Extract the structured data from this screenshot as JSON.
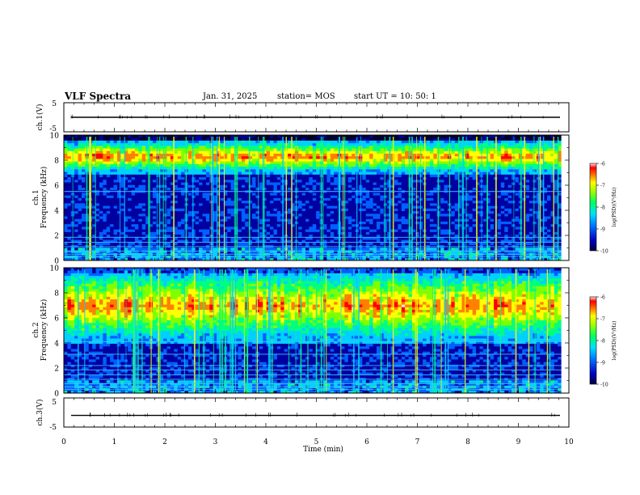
{
  "header": {
    "title": "VLF Spectra",
    "date": "Jan. 31, 2025",
    "station": "station= MOS",
    "start": "start  UT =   10: 50: 1"
  },
  "colors": {
    "spectrogram_scale": [
      "#000030",
      "#0000a0",
      "#0060ff",
      "#00d0ff",
      "#00ff80",
      "#80ff00",
      "#ffff00",
      "#ff8000",
      "#ff0000",
      "#ffe0e0"
    ]
  },
  "chart_data": [
    {
      "type": "line",
      "name": "ch1-waveform",
      "ylabel": "ch.1(V)",
      "ylim": [
        -5,
        5
      ],
      "yticks": [
        "5",
        "-5"
      ],
      "x": [
        0,
        10
      ],
      "y": [
        0,
        0
      ]
    },
    {
      "type": "heatmap",
      "name": "ch1-spectrogram",
      "ylabel": "ch.1\nFrequency (kHz)",
      "ylabel_line1": "ch.1",
      "ylabel_line2": "Frequency (kHz)",
      "ylim": [
        0,
        10
      ],
      "yticks": [
        "0",
        "2",
        "4",
        "6",
        "8",
        "10"
      ],
      "xlim": [
        0,
        9.85
      ],
      "colorbar": {
        "label": "log(PSD)(V²/Hz)",
        "range": [
          -10,
          -6
        ],
        "ticks": [
          "-6",
          "-7",
          "-8",
          "-9",
          "-10"
        ]
      },
      "emission_band_khz": [
        7.2,
        9.4
      ],
      "narrowband_lines_khz": [
        0.3,
        0.5,
        0.75,
        1.1,
        1.45,
        1.85,
        5.5
      ]
    },
    {
      "type": "heatmap",
      "name": "ch2-spectrogram",
      "ylabel": "ch.2\nFrequency (kHz)",
      "ylabel_line1": "ch.2",
      "ylabel_line2": "Frequency (kHz)",
      "ylim": [
        0,
        10
      ],
      "yticks": [
        "0",
        "2",
        "4",
        "6",
        "8",
        "10"
      ],
      "xlim": [
        0,
        9.85
      ],
      "colorbar": {
        "label": "log(PSD)(V²/Hz)",
        "range": [
          -10,
          -6
        ],
        "ticks": [
          "-6",
          "-7",
          "-8",
          "-9",
          "-10"
        ]
      },
      "emission_band_khz": [
        4.5,
        9.5
      ],
      "narrowband_lines_khz": [
        0.3,
        0.5,
        0.75,
        1.1,
        1.45,
        1.85,
        2.2,
        3.1,
        4.1
      ]
    },
    {
      "type": "line",
      "name": "ch3-waveform",
      "ylabel": "ch.3(V)",
      "ylim": [
        -5,
        5
      ],
      "yticks": [
        "5",
        "-5"
      ],
      "x": [
        0,
        10
      ],
      "y": [
        -1,
        -1
      ]
    }
  ],
  "xaxis": {
    "label": "Time  (min)",
    "xlim": [
      0,
      10
    ],
    "ticks": [
      "0",
      "1",
      "2",
      "3",
      "4",
      "5",
      "6",
      "7",
      "8",
      "9",
      "10"
    ]
  }
}
